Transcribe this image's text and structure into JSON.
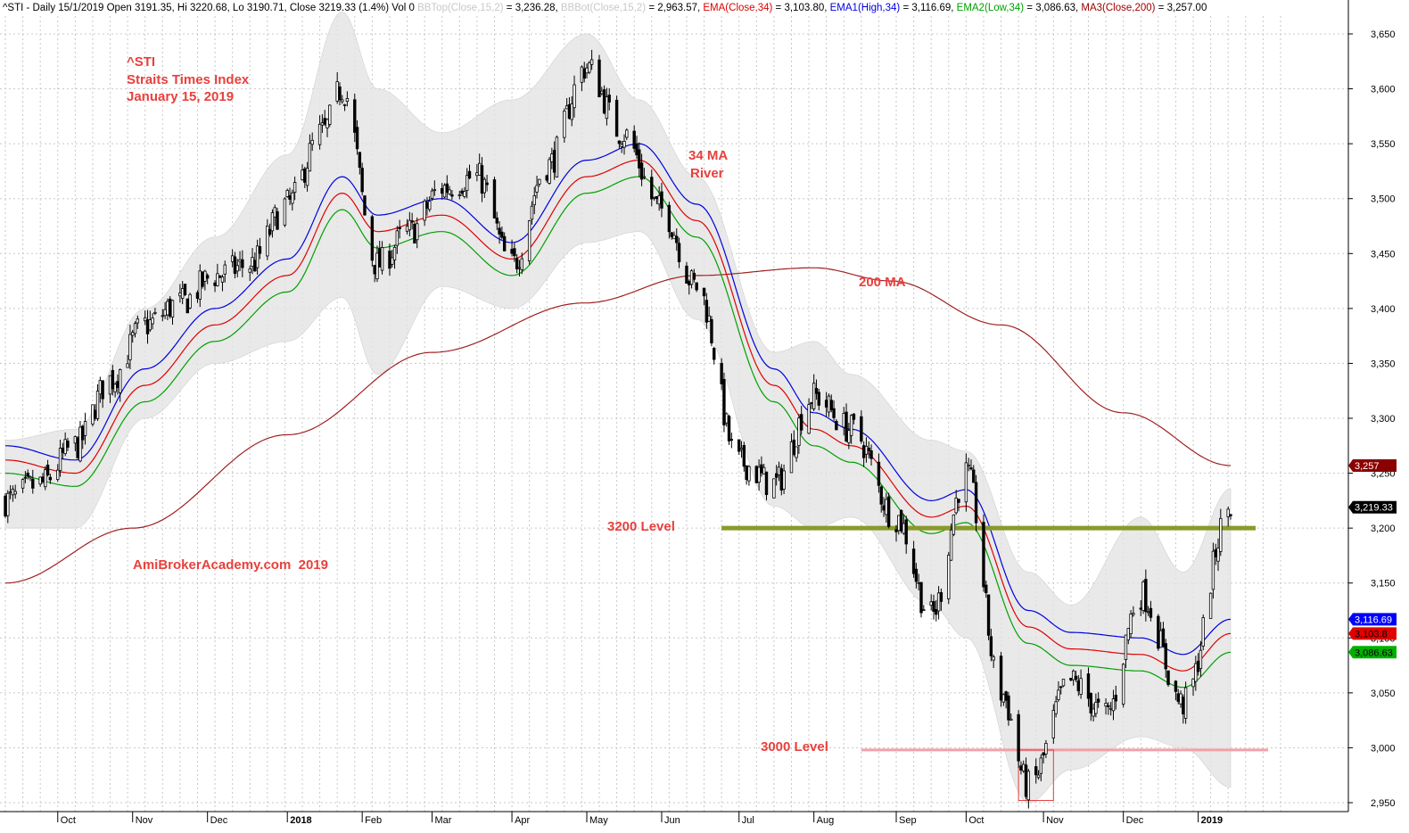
{
  "header": {
    "parts": [
      {
        "text": "^STI - Daily 15/1/2019 Open 3191.35, Hi 3220.68, Lo 3190.71, Close 3219.33 (1.4%) Vol 0 ",
        "color": "#000000"
      },
      {
        "text": "BBTop(Close,15,2)",
        "color": "#c8c8c8"
      },
      {
        "text": " = 3,236.28, ",
        "color": "#000000"
      },
      {
        "text": "BBBot(Close,15,2)",
        "color": "#c8c8c8"
      },
      {
        "text": " = 2,963.57, ",
        "color": "#000000"
      },
      {
        "text": "EMA(Close,34)",
        "color": "#e00000"
      },
      {
        "text": " = 3,103.80, ",
        "color": "#000000"
      },
      {
        "text": "EMA1(High,34)",
        "color": "#0000e0"
      },
      {
        "text": " = 3,116.69, ",
        "color": "#000000"
      },
      {
        "text": "EMA2(Low,34)",
        "color": "#00a000"
      },
      {
        "text": " = 3,086.63, ",
        "color": "#000000"
      },
      {
        "text": "MA3(Close,200)",
        "color": "#a00000"
      },
      {
        "text": " = 3,257.00",
        "color": "#000000"
      }
    ]
  },
  "annotations": {
    "ticker": "^STI",
    "index_name": "Straits Times Index",
    "date": "January 15, 2019",
    "river": [
      "34 MA",
      "River"
    ],
    "ma200": "200 MA",
    "level_3200": "3200 Level",
    "level_3000": "3000 Level",
    "watermark": "AmiBrokerAcademy.com  2019"
  },
  "colors": {
    "annotation": "#e8403c",
    "candle": "#000000",
    "ema_close": "#e00000",
    "ema_high": "#0000e0",
    "ema_low": "#00a000",
    "ma200": "#a02020",
    "bb_band": "#e4e4e4",
    "level_3200_line": "#8a9a2a",
    "level_3000_line": "#f2a0a8",
    "grid": "#c8c8c8"
  },
  "chart_data": {
    "type": "candlestick",
    "y_ticks": [
      2950,
      3000,
      3050,
      3100,
      3150,
      3200,
      3250,
      3300,
      3350,
      3400,
      3450,
      3500,
      3550,
      3600,
      3650
    ],
    "y_tick_labels": [
      "2,950",
      "3,000",
      "3,050",
      "3,100",
      "3,150",
      "3,200",
      "3,250",
      "3,300",
      "3,350",
      "3,400",
      "3,450",
      "3,500",
      "3,550",
      "3,600",
      "3,650"
    ],
    "ylim": [
      2935,
      3665
    ],
    "x_ticks": [
      {
        "label": "Oct",
        "date": "2017-10-02",
        "bold": false
      },
      {
        "label": "Nov",
        "date": "2017-11-01",
        "bold": false
      },
      {
        "label": "Dec",
        "date": "2017-12-01",
        "bold": false
      },
      {
        "label": "2018",
        "date": "2018-01-02",
        "bold": true
      },
      {
        "label": "Feb",
        "date": "2018-02-01",
        "bold": false
      },
      {
        "label": "Mar",
        "date": "2018-03-01",
        "bold": false
      },
      {
        "label": "Apr",
        "date": "2018-04-02",
        "bold": false
      },
      {
        "label": "May",
        "date": "2018-05-02",
        "bold": false
      },
      {
        "label": "Jun",
        "date": "2018-06-01",
        "bold": false
      },
      {
        "label": "Jul",
        "date": "2018-07-02",
        "bold": false
      },
      {
        "label": "Aug",
        "date": "2018-08-01",
        "bold": false
      },
      {
        "label": "Sep",
        "date": "2018-09-03",
        "bold": false
      },
      {
        "label": "Oct",
        "date": "2018-10-01",
        "bold": false
      },
      {
        "label": "Nov",
        "date": "2018-11-01",
        "bold": false
      },
      {
        "label": "Dec",
        "date": "2018-12-03",
        "bold": false
      },
      {
        "label": "2019",
        "date": "2019-01-02",
        "bold": true
      }
    ],
    "series": [
      {
        "name": "Close",
        "type": "candle",
        "dates": [
          "2017-09-11",
          "2017-09-25",
          "2017-10-09",
          "2017-10-23",
          "2017-11-06",
          "2017-11-20",
          "2017-12-04",
          "2017-12-18",
          "2018-01-02",
          "2018-01-16",
          "2018-01-24",
          "2018-02-07",
          "2018-02-20",
          "2018-03-05",
          "2018-03-19",
          "2018-04-02",
          "2018-04-16",
          "2018-05-02",
          "2018-05-16",
          "2018-06-01",
          "2018-06-15",
          "2018-07-02",
          "2018-07-16",
          "2018-08-01",
          "2018-08-16",
          "2018-09-03",
          "2018-09-17",
          "2018-10-01",
          "2018-10-15",
          "2018-10-26",
          "2018-11-12",
          "2018-11-26",
          "2018-12-10",
          "2018-12-27",
          "2019-01-15"
        ],
        "values": [
          3225,
          3240,
          3275,
          3335,
          3385,
          3405,
          3430,
          3440,
          3495,
          3560,
          3600,
          3440,
          3470,
          3510,
          3520,
          3440,
          3530,
          3620,
          3560,
          3490,
          3420,
          3260,
          3240,
          3320,
          3290,
          3210,
          3120,
          3250,
          3050,
          2965,
          3060,
          3030,
          3140,
          3040,
          3219
        ]
      },
      {
        "name": "EMA(Close,34)",
        "dates": [
          "2017-09-11",
          "2017-10-09",
          "2017-11-06",
          "2017-12-04",
          "2018-01-02",
          "2018-01-24",
          "2018-02-07",
          "2018-03-05",
          "2018-04-02",
          "2018-05-02",
          "2018-05-23",
          "2018-06-15",
          "2018-07-16",
          "2018-08-01",
          "2018-08-16",
          "2018-09-17",
          "2018-10-01",
          "2018-10-26",
          "2018-11-12",
          "2018-12-10",
          "2018-12-27",
          "2019-01-15"
        ],
        "values": [
          3262,
          3250,
          3330,
          3385,
          3430,
          3505,
          3470,
          3485,
          3445,
          3520,
          3535,
          3480,
          3330,
          3290,
          3275,
          3210,
          3220,
          3110,
          3090,
          3085,
          3070,
          3104
        ]
      },
      {
        "name": "EMA1(High,34)",
        "dates": [
          "2017-09-11",
          "2017-10-09",
          "2017-11-06",
          "2017-12-04",
          "2018-01-02",
          "2018-01-24",
          "2018-02-07",
          "2018-03-05",
          "2018-04-02",
          "2018-05-02",
          "2018-05-23",
          "2018-06-15",
          "2018-07-16",
          "2018-08-01",
          "2018-08-16",
          "2018-09-17",
          "2018-10-01",
          "2018-10-26",
          "2018-11-12",
          "2018-12-10",
          "2018-12-27",
          "2019-01-15"
        ],
        "values": [
          3275,
          3262,
          3345,
          3400,
          3445,
          3520,
          3485,
          3500,
          3460,
          3535,
          3550,
          3495,
          3345,
          3305,
          3290,
          3225,
          3235,
          3125,
          3105,
          3100,
          3085,
          3117
        ]
      },
      {
        "name": "EMA2(Low,34)",
        "dates": [
          "2017-09-11",
          "2017-10-09",
          "2017-11-06",
          "2017-12-04",
          "2018-01-02",
          "2018-01-24",
          "2018-02-07",
          "2018-03-05",
          "2018-04-02",
          "2018-05-02",
          "2018-05-23",
          "2018-06-15",
          "2018-07-16",
          "2018-08-01",
          "2018-08-16",
          "2018-09-17",
          "2018-10-01",
          "2018-10-26",
          "2018-11-12",
          "2018-12-10",
          "2018-12-27",
          "2019-01-15"
        ],
        "values": [
          3250,
          3238,
          3315,
          3370,
          3415,
          3490,
          3455,
          3470,
          3430,
          3505,
          3520,
          3465,
          3315,
          3275,
          3260,
          3195,
          3205,
          3095,
          3075,
          3070,
          3055,
          3087
        ]
      },
      {
        "name": "MA3(Close,200)",
        "dates": [
          "2017-09-11",
          "2017-11-01",
          "2018-01-02",
          "2018-03-01",
          "2018-05-01",
          "2018-06-15",
          "2018-08-01",
          "2018-09-01",
          "2018-10-15",
          "2018-12-03",
          "2019-01-15"
        ],
        "values": [
          3150,
          3200,
          3285,
          3360,
          3405,
          3430,
          3437,
          3425,
          3385,
          3305,
          3257
        ]
      },
      {
        "name": "BBTop(Close,15,2)",
        "dates": [
          "2017-09-11",
          "2017-10-09",
          "2017-11-06",
          "2017-12-04",
          "2018-01-02",
          "2018-01-24",
          "2018-02-07",
          "2018-03-05",
          "2018-04-02",
          "2018-05-02",
          "2018-05-23",
          "2018-06-15",
          "2018-07-16",
          "2018-08-01",
          "2018-08-16",
          "2018-09-17",
          "2018-10-01",
          "2018-10-26",
          "2018-11-12",
          "2018-12-10",
          "2018-12-27",
          "2019-01-15"
        ],
        "values": [
          3280,
          3290,
          3400,
          3465,
          3540,
          3670,
          3600,
          3560,
          3590,
          3650,
          3590,
          3520,
          3360,
          3370,
          3340,
          3280,
          3270,
          3160,
          3130,
          3210,
          3160,
          3236
        ]
      },
      {
        "name": "BBBot(Close,15,2)",
        "dates": [
          "2017-09-11",
          "2017-10-09",
          "2017-11-06",
          "2017-12-04",
          "2018-01-02",
          "2018-01-24",
          "2018-02-07",
          "2018-03-05",
          "2018-04-02",
          "2018-05-02",
          "2018-05-23",
          "2018-06-15",
          "2018-07-16",
          "2018-08-01",
          "2018-08-16",
          "2018-09-17",
          "2018-10-01",
          "2018-10-26",
          "2018-11-12",
          "2018-12-10",
          "2018-12-27",
          "2019-01-15"
        ],
        "values": [
          3200,
          3200,
          3300,
          3350,
          3370,
          3410,
          3340,
          3420,
          3400,
          3460,
          3470,
          3390,
          3220,
          3200,
          3210,
          3130,
          3100,
          2950,
          2980,
          3010,
          3000,
          2964
        ]
      }
    ],
    "horizontal_levels": [
      {
        "name": "3200 Level",
        "value": 3200,
        "from": "2018-06-25",
        "to": "2019-01-25"
      },
      {
        "name": "3000 Level",
        "value": 2998,
        "from": "2018-08-20",
        "to": "2019-01-30"
      }
    ],
    "highlight_box": {
      "from": "2018-10-22",
      "to": "2018-11-05",
      "low": 2952,
      "high": 2998
    },
    "value_tags": [
      {
        "label": "3,257",
        "value": 3257,
        "bg": "#8b0000",
        "fg": "#ffffff"
      },
      {
        "label": "3,219.33",
        "value": 3219,
        "bg": "#000000",
        "fg": "#ffffff"
      },
      {
        "label": "3,116.69",
        "value": 3117,
        "bg": "#0000ff",
        "fg": "#ffffff"
      },
      {
        "label": "3,103.8",
        "value": 3104,
        "bg": "#e00000",
        "fg": "#000000"
      },
      {
        "label": "3,086.63",
        "value": 3087,
        "bg": "#00b000",
        "fg": "#000000"
      }
    ],
    "grid": true
  }
}
